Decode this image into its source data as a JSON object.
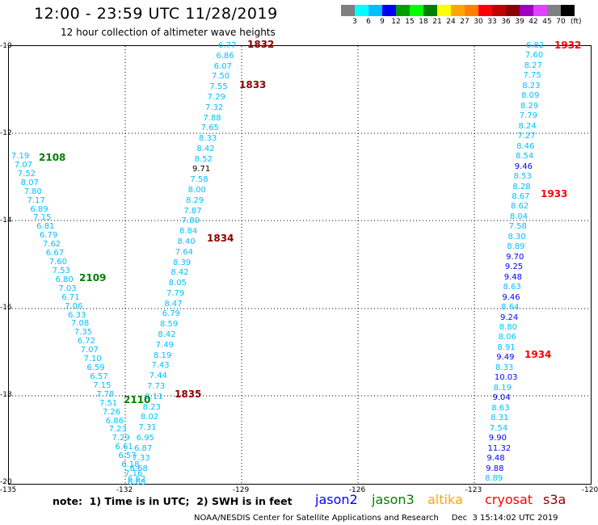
{
  "title": "12:00 - 23:59 UTC 11/28/2019",
  "subtitle": "12 hour collection of altimeter wave heights",
  "scale": {
    "colors": [
      "#7f7f7f",
      "#00ffff",
      "#00bfff",
      "#0000ff",
      "#009f00",
      "#00ff00",
      "#008000",
      "#ffff00",
      "#ffa500",
      "#ff8000",
      "#ff0000",
      "#c00000",
      "#8b0000",
      "#a000c0",
      "#e040ff",
      "#808080",
      "#000000"
    ],
    "labels": [
      "3",
      "6",
      "9",
      "12",
      "15",
      "18",
      "21",
      "24",
      "27",
      "30",
      "33",
      "36",
      "39",
      "42",
      "45",
      "70"
    ],
    "unit": "(ft)"
  },
  "axes": {
    "ylabels": [
      "-10",
      "-12",
      "-14",
      "-16",
      "-18",
      "-20"
    ],
    "xlabels": [
      "-135",
      "-132",
      "-129",
      "-126",
      "-123",
      "-120"
    ]
  },
  "pass_labels": [
    {
      "text": "1832",
      "color": "#8b0000"
    },
    {
      "text": "1833",
      "color": "#8b0000"
    },
    {
      "text": "1834",
      "color": "#8b0000"
    },
    {
      "text": "1835",
      "color": "#8b0000"
    },
    {
      "text": "2108",
      "color": "#008000"
    },
    {
      "text": "2109",
      "color": "#008000"
    },
    {
      "text": "2110",
      "color": "#008000"
    },
    {
      "text": "1932",
      "color": "#ff0000"
    },
    {
      "text": "1933",
      "color": "#ff0000"
    },
    {
      "text": "1934",
      "color": "#ff0000"
    }
  ],
  "track_s3a_1": [
    "6.77",
    "6.86",
    "6.07",
    "7.50",
    "7.55",
    "7.29",
    "7.32",
    "7.88",
    "7.65",
    "8.33",
    "8.42",
    "8.52",
    "9.71",
    "7.58",
    "8.00",
    "8.29",
    "7.87",
    "7.80",
    "8.84",
    "8.40",
    "7.64",
    "8.39",
    "8.42",
    "8.05",
    "7.79",
    "8.47",
    "6.79",
    "8.59",
    "8.42",
    "7.49",
    "8.19",
    "7.43",
    "7.44",
    "7.73",
    "8.11",
    "8.23",
    "8.02",
    "7.31",
    "6.95",
    "6.87",
    "7.33",
    "6.68",
    "6.62"
  ],
  "track_jason3": [
    "7.19",
    "7.07",
    "7.52",
    "8.07",
    "7.80",
    "7.17",
    "6.89",
    "7.15",
    "6.81",
    "6.79",
    "7.62",
    "6.67",
    "7.60",
    "7.53",
    "6.80",
    "7.03",
    "6.71",
    "7.06",
    "6.33",
    "7.08",
    "7.35",
    "6.72",
    "7.07",
    "7.10",
    "6.59",
    "6.57",
    "7.15",
    "7.78",
    "7.51",
    "7.26",
    "6.86",
    "7.23",
    "7.29",
    "6.61",
    "6.57",
    "6.18",
    "7.16",
    "6.68"
  ],
  "track_s3a_2": [
    "6.82",
    "7.60",
    "8.27",
    "7.75",
    "8.23",
    "8.09",
    "8.29",
    "7.79",
    "8.24",
    "7.27",
    "8.46",
    "8.54",
    "9.46",
    "8.53",
    "8.28",
    "8.67",
    "8.62",
    "8.04",
    "7.58",
    "8.30",
    "8.89",
    "9.70",
    "9.25",
    "9.48",
    "8.63",
    "9.46",
    "8.64",
    "9.24",
    "8.80",
    "8.06",
    "8.91",
    "9.49",
    "8.33",
    "10.03",
    "8.19",
    "9.04",
    "8.63",
    "8.31",
    "7.54",
    "9.90",
    "11.32",
    "9.48",
    "9.88",
    "8.89"
  ],
  "note": "note:  1) Time is in UTC;  2) SWH is in feet",
  "satellites": [
    {
      "name": "jason2",
      "color": "#0000ff"
    },
    {
      "name": "jason3",
      "color": "#008000"
    },
    {
      "name": "altika",
      "color": "#ffa500"
    },
    {
      "name": "cryosat",
      "color": "#ff0000"
    },
    {
      "name": "s3a",
      "color": "#8b0000"
    }
  ],
  "credit": "NOAA/NESDIS Center for Satellite Applications and Research     Dec  3 15:14:02 UTC 2019"
}
